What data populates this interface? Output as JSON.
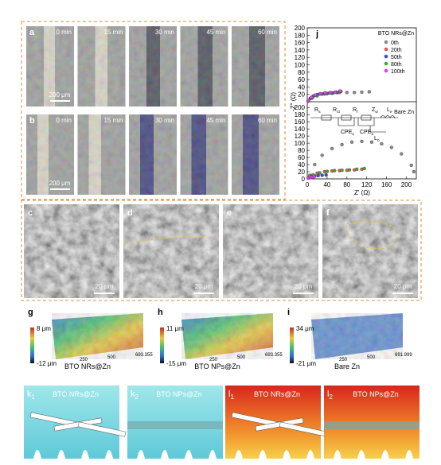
{
  "figure": {
    "ab": [
      {
        "label": "a",
        "times": [
          "0 min",
          "15 min",
          "30 min",
          "45 min",
          "60 min"
        ],
        "scale": "200 μm"
      },
      {
        "label": "b",
        "times": [
          "0 min",
          "15 min",
          "30 min",
          "45 min",
          "60 min"
        ],
        "scale": "200 μm"
      }
    ],
    "cf": [
      {
        "label": "c",
        "scale": "20 μm"
      },
      {
        "label": "d",
        "scale": "20 μm"
      },
      {
        "label": "e",
        "scale": "20 μm"
      },
      {
        "label": "f",
        "scale": "20 μm"
      }
    ],
    "ghi": [
      {
        "label": "g",
        "max": "8 μm",
        "min": "-12 μm",
        "caption": "BTO NRs@Zn",
        "ticks": [
          "250",
          "500",
          "693.355"
        ]
      },
      {
        "label": "h",
        "max": "11 μm",
        "min": "-15 μm",
        "caption": "BTO NPs@Zn",
        "ticks": [
          "250",
          "500",
          "693.355"
        ]
      },
      {
        "label": "i",
        "max": "34 μm",
        "min": "-21 μm",
        "caption": "Bare Zn",
        "ticks": [
          "250",
          "500",
          "691.999"
        ]
      }
    ],
    "kl": [
      {
        "label": "k",
        "sub": "1",
        "title": "BTO NRs@Zn"
      },
      {
        "label": "k",
        "sub": "2",
        "title": "BTO NPs@Zn"
      },
      {
        "label": "l",
        "sub": "1",
        "title": "BTO NRs@Zn"
      },
      {
        "label": "l",
        "sub": "2",
        "title": "BTO NPs@Zn"
      }
    ],
    "j": {
      "label": "j",
      "circuit": [
        {
          "main": "R",
          "sub": "s"
        },
        {
          "main": "R",
          "sub": "ct"
        },
        {
          "main": "R",
          "sub": "f"
        },
        {
          "main": "Z",
          "sub": "w"
        },
        {
          "main": "L",
          "sub": "e"
        },
        {
          "main": "CPE",
          "sub": "1"
        },
        {
          "main": "CPE",
          "sub": "2"
        },
        {
          "main": "L",
          "sub": "0"
        }
      ]
    }
  },
  "chart_data": [
    {
      "type": "scatter",
      "title": "BTO NRs@Zn",
      "y_label": "-Z'' (Ω)",
      "xlim": [
        0,
        220
      ],
      "ylim": [
        0,
        200
      ],
      "yticks": [
        20,
        40,
        60,
        80,
        100,
        120,
        140,
        160,
        180,
        200
      ],
      "series": [
        {
          "name": "0th",
          "color": "#8a8a8a",
          "x": [
            2,
            10,
            20,
            35,
            50,
            65,
            80,
            95,
            110,
            125
          ],
          "values": [
            2,
            10,
            16,
            21,
            24,
            25,
            25,
            25,
            26,
            27
          ]
        },
        {
          "name": "20th",
          "color": "#e8534d",
          "x": [
            2,
            8,
            15,
            25,
            35,
            45,
            55,
            65
          ],
          "values": [
            2,
            10,
            17,
            21,
            23,
            24,
            25,
            27
          ]
        },
        {
          "name": "50th",
          "color": "#3b4fd6",
          "x": [
            2,
            6,
            12,
            20,
            30,
            40,
            50,
            60
          ],
          "values": [
            2,
            9,
            15,
            19,
            21,
            22,
            23,
            25
          ]
        },
        {
          "name": "80th",
          "color": "#3fa535",
          "x": [
            3,
            10,
            18,
            28,
            38,
            48,
            58,
            68
          ],
          "values": [
            2,
            11,
            17,
            21,
            23,
            24,
            26,
            28
          ]
        },
        {
          "name": "100th",
          "color": "#e040e0",
          "x": [
            2,
            8,
            16,
            26,
            36,
            46,
            56,
            66
          ],
          "values": [
            3,
            12,
            18,
            22,
            24,
            25,
            26,
            29
          ]
        }
      ]
    },
    {
      "type": "scatter",
      "title": "Bare Zn",
      "x_label": "Z' (Ω)",
      "xlim": [
        0,
        220
      ],
      "ylim": [
        0,
        205
      ],
      "xticks": [
        0,
        40,
        80,
        120,
        160,
        200
      ],
      "yticks": [
        0,
        20,
        40,
        60,
        80,
        100,
        120,
        140,
        160,
        180,
        200
      ],
      "series": [
        {
          "color": "#8a8a8a",
          "x": [
            5,
            15,
            30,
            50,
            70,
            90,
            110,
            130,
            150,
            170,
            190,
            210,
            215
          ],
          "values": [
            10,
            40,
            66,
            85,
            96,
            103,
            105,
            103,
            98,
            88,
            70,
            38,
            20
          ]
        },
        {
          "color": "#e8534d",
          "x": [
            3,
            10,
            20,
            35,
            50,
            65,
            80,
            95,
            110
          ],
          "values": [
            3,
            10,
            16,
            20,
            22,
            23,
            24,
            25,
            27
          ]
        },
        {
          "color": "#3b4fd6",
          "x": [
            2,
            8,
            15,
            22,
            30,
            38
          ],
          "values": [
            2,
            6,
            8,
            9,
            10,
            11
          ]
        },
        {
          "color": "#3fa535",
          "x": [
            4,
            12,
            25,
            40,
            55,
            70,
            85,
            100,
            115
          ],
          "values": [
            3,
            11,
            17,
            21,
            23,
            24,
            25,
            27,
            29
          ]
        },
        {
          "color": "#e040e0",
          "x": [
            2,
            6,
            10,
            14
          ],
          "values": [
            2,
            4,
            5,
            6
          ]
        }
      ]
    }
  ]
}
